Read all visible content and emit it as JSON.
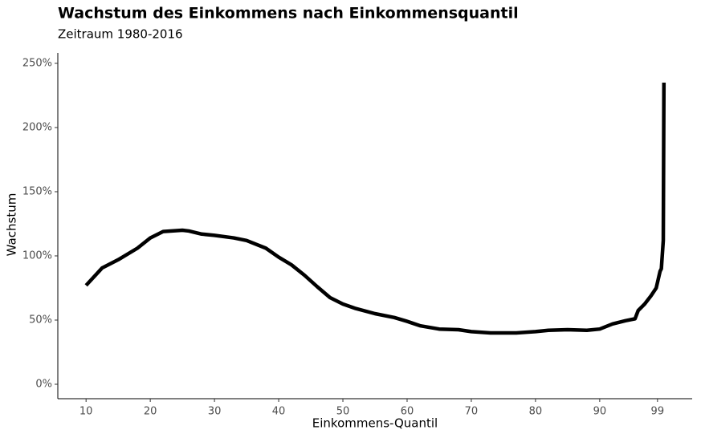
{
  "chart_data": {
    "type": "line",
    "title": "Wachstum des Einkommens nach Einkommensquantil",
    "subtitle": "Zeitraum 1980-2016",
    "x_label": "Einkommens-Quantil",
    "y_label": "Wachstum",
    "x": [
      10,
      12.5,
      15,
      18,
      20,
      22,
      25,
      26,
      28,
      30,
      33,
      35,
      38,
      40,
      42,
      44,
      46,
      48,
      50,
      52,
      55,
      58,
      60,
      62,
      65,
      68,
      70,
      73,
      77,
      80,
      82,
      85,
      88,
      90,
      92,
      94,
      95.5,
      96,
      97,
      98,
      98.8,
      99.4,
      99.6,
      99.9,
      100
    ],
    "series": [
      {
        "name": "Wachstum",
        "color": "#000000",
        "values": [
          77,
          90.6,
          97,
          106,
          114,
          119,
          120,
          119.4,
          117,
          116,
          114,
          112,
          106,
          99,
          93,
          85,
          76,
          67.5,
          62.5,
          59,
          55,
          52,
          49,
          45.6,
          43,
          42.5,
          41,
          40,
          40,
          41,
          42,
          42.5,
          42,
          43,
          47,
          49.5,
          51,
          57.5,
          62.5,
          69,
          75,
          88,
          90,
          112,
          235
        ]
      }
    ],
    "xlim": [
      5.6,
      104.4
    ],
    "xticks": [
      10,
      20,
      30,
      40,
      50,
      60,
      70,
      80,
      90,
      99
    ],
    "ylim": [
      -11.25,
      258.1
    ],
    "yticks": [
      {
        "value": 0,
        "label": "0%"
      },
      {
        "value": 50,
        "label": "50%"
      },
      {
        "value": 100,
        "label": "100%"
      },
      {
        "value": 150,
        "label": "150%"
      },
      {
        "value": 200,
        "label": "200%"
      },
      {
        "value": 250,
        "label": "250%"
      }
    ],
    "grid": false
  }
}
